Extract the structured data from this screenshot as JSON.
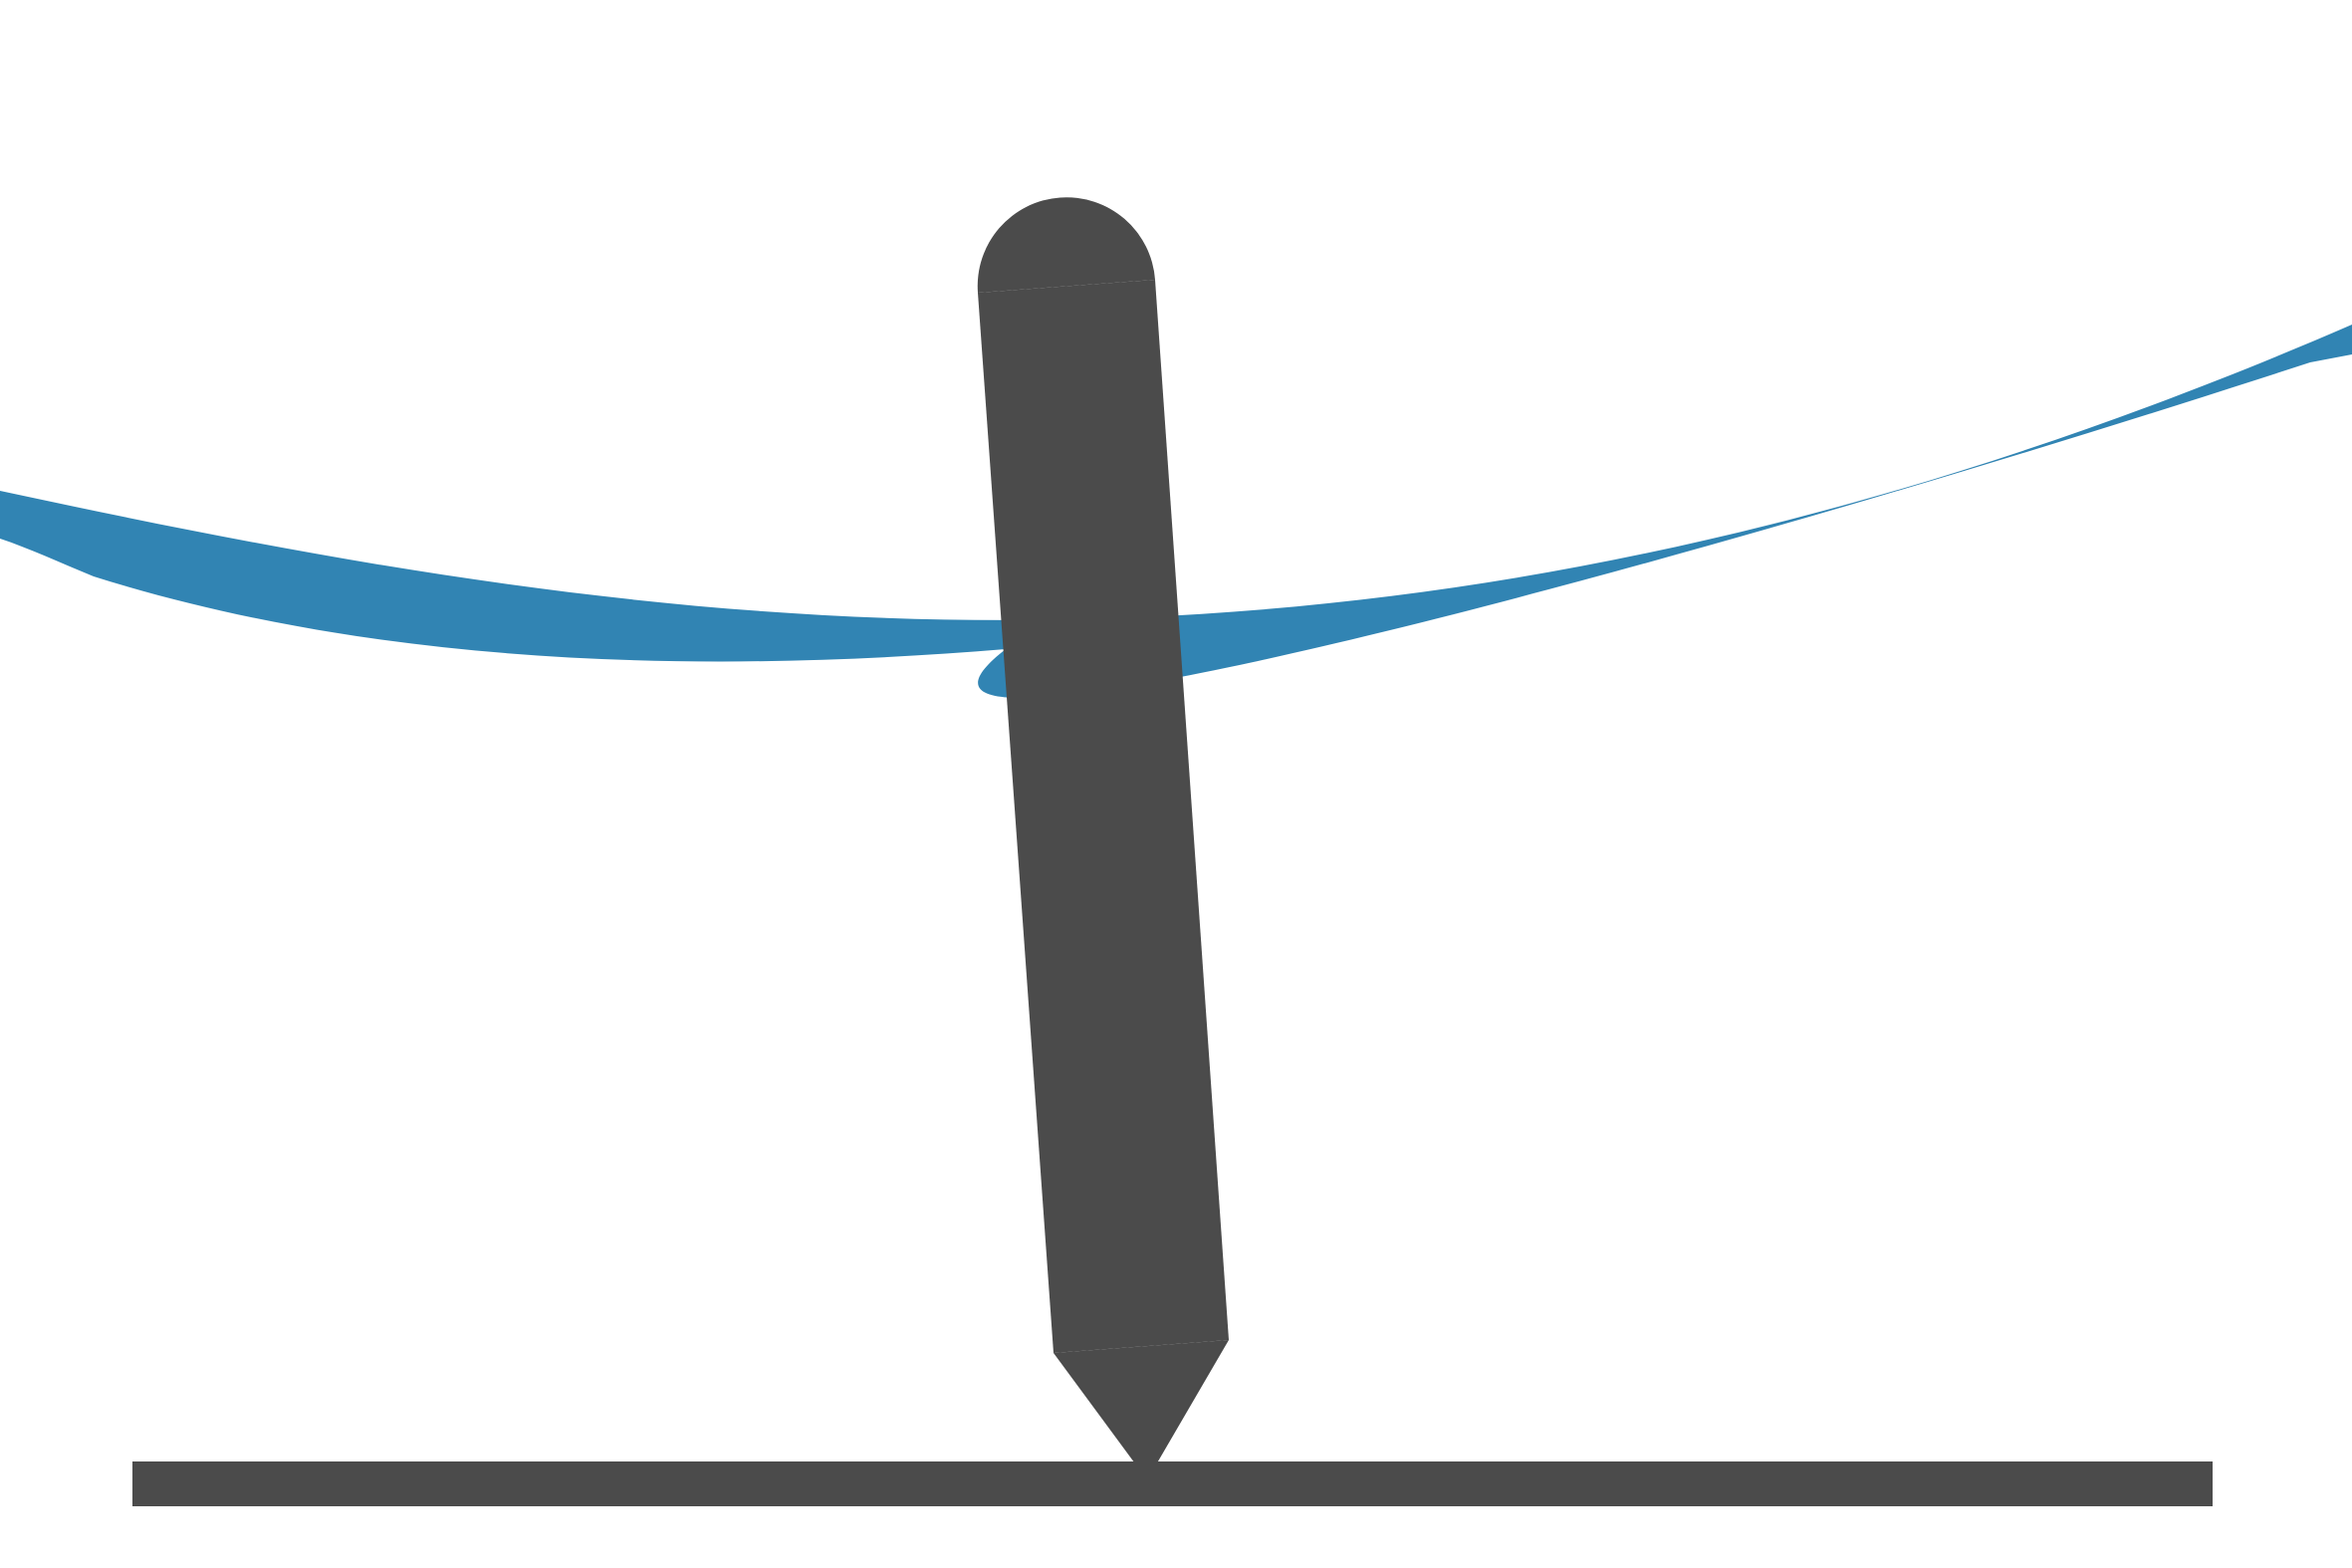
{
  "colors": {
    "background": "#ffffff",
    "pencil": "#4b4b4b",
    "line": "#4b4b4b",
    "stroke": "#3184b3"
  },
  "icons": {
    "main": "pencil-icon",
    "stroke": "brush-stroke",
    "baseline": "baseline-bar"
  }
}
